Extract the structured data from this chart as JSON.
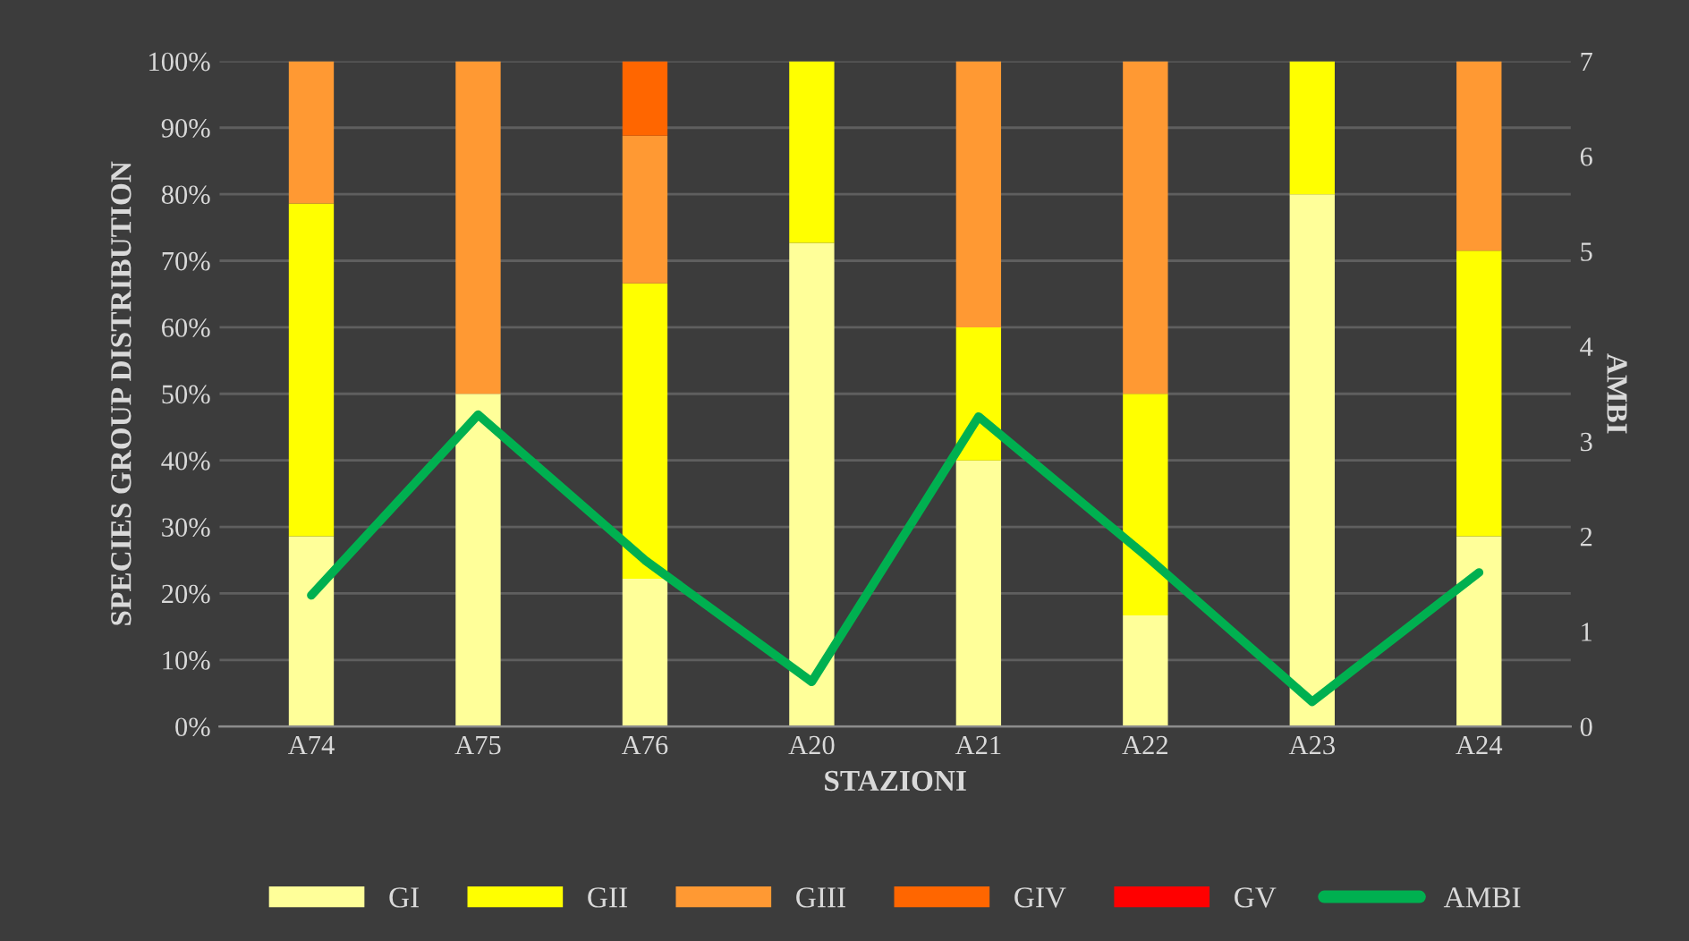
{
  "chart_data": {
    "type": "bar",
    "stacked": true,
    "xlabel": "STAZIONI",
    "ylabel": "SPECIES GROUP DISTRIBUTION",
    "y2label": "AMBI",
    "categories": [
      "A74",
      "A75",
      "A76",
      "A20",
      "A21",
      "A22",
      "A23",
      "A24"
    ],
    "series": [
      {
        "name": "GI",
        "color": "#ffff99",
        "values": [
          28.6,
          50,
          22.2,
          72.7,
          40,
          16.7,
          80,
          28.6
        ]
      },
      {
        "name": "GII",
        "color": "#ffff00",
        "values": [
          50,
          0,
          44.4,
          27.3,
          20,
          33.3,
          20,
          42.9
        ]
      },
      {
        "name": "GIII",
        "color": "#ff9933",
        "values": [
          21.4,
          50,
          22.2,
          0,
          40,
          50,
          0,
          28.5
        ]
      },
      {
        "name": "GIV",
        "color": "#ff6600",
        "values": [
          0,
          0,
          11.2,
          0,
          0,
          0,
          0,
          0
        ]
      },
      {
        "name": "GV",
        "color": "#ff0000",
        "values": [
          0,
          0,
          0,
          0,
          0,
          0,
          0,
          0
        ]
      },
      {
        "name": "AMBI",
        "type": "line",
        "axis": "y2",
        "color": "#00b050",
        "values": [
          1.38,
          3.28,
          1.75,
          0.47,
          3.26,
          1.8,
          0.26,
          1.62
        ]
      }
    ],
    "ylim": [
      0,
      100
    ],
    "yticks": [
      {
        "value": 0,
        "label": "0%"
      },
      {
        "value": 10,
        "label": "10%"
      },
      {
        "value": 20,
        "label": "20%"
      },
      {
        "value": 30,
        "label": "30%"
      },
      {
        "value": 40,
        "label": "40%"
      },
      {
        "value": 50,
        "label": "50%"
      },
      {
        "value": 60,
        "label": "60%"
      },
      {
        "value": 70,
        "label": "70%"
      },
      {
        "value": 80,
        "label": "80%"
      },
      {
        "value": 90,
        "label": "90%"
      },
      {
        "value": 100,
        "label": "100%"
      }
    ],
    "y2lim": [
      0,
      7
    ],
    "y2ticks": [
      0,
      1,
      2,
      3,
      4,
      5,
      6,
      7
    ],
    "grid": "y",
    "legend": "bottom",
    "marker": "none",
    "line_style": "solid"
  }
}
